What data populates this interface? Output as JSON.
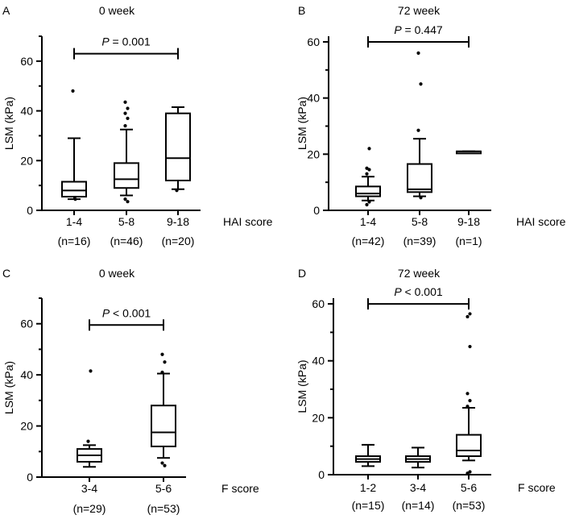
{
  "chart_data": [
    {
      "type": "box",
      "panel": "A",
      "title": "0 week",
      "ylabel": "LSM (kPa)",
      "xlabel": "HAI score",
      "ylim": [
        0,
        70
      ],
      "yticks": [
        0,
        20,
        40,
        60
      ],
      "categories": [
        {
          "label": "1-4",
          "n": "(n=16)",
          "whisker_low": 4.5,
          "q1": 5.5,
          "median": 8,
          "q3": 11.5,
          "whisker_high": 29,
          "outliers_low": [
            4.5
          ],
          "outliers_high": [
            48
          ]
        },
        {
          "label": "5-8",
          "n": "(n=46)",
          "whisker_low": 6,
          "q1": 9,
          "median": 12.5,
          "q3": 19,
          "whisker_high": 32.5,
          "outliers_low": [
            3.5,
            4.5
          ],
          "outliers_high": [
            34,
            37,
            39,
            41,
            43.5
          ]
        },
        {
          "label": "9-18",
          "n": "(n=20)",
          "whisker_low": 8.5,
          "q1": 12,
          "median": 21,
          "q3": 39,
          "whisker_high": 41.5,
          "outliers_low": [
            8
          ],
          "outliers_high": []
        }
      ],
      "comparison": {
        "from": 0,
        "to": 2,
        "y": 63,
        "p": "P",
        "value": "= 0.001"
      }
    },
    {
      "type": "box",
      "panel": "B",
      "title": "72 week",
      "ylabel": "LSM (kPa)",
      "xlabel": "HAI score",
      "ylim": [
        0,
        62
      ],
      "yticks": [
        0,
        20,
        40,
        60
      ],
      "categories": [
        {
          "label": "1-4",
          "n": "(n=42)",
          "whisker_low": 3.5,
          "q1": 5,
          "median": 6,
          "q3": 8.5,
          "whisker_high": 12,
          "outliers_low": [
            2,
            3
          ],
          "outliers_high": [
            13,
            14.5,
            15,
            22
          ]
        },
        {
          "label": "5-8",
          "n": "(n=39)",
          "whisker_low": 5,
          "q1": 6.5,
          "median": 7.5,
          "q3": 16.5,
          "whisker_high": 25.5,
          "outliers_low": [
            4.5
          ],
          "outliers_high": [
            28.5,
            45,
            56
          ]
        },
        {
          "label": "9-18",
          "n": "(n=1)",
          "whisker_low": 21,
          "q1": 21,
          "median": 21,
          "q3": 21,
          "whisker_high": 21,
          "outliers_low": [],
          "outliers_high": []
        }
      ],
      "comparison": {
        "from": 0,
        "to": 2,
        "y": 60,
        "p": "P",
        "value": "= 0.447"
      }
    },
    {
      "type": "box",
      "panel": "C",
      "title": "0 week",
      "ylabel": "LSM (kPa)",
      "xlabel": "F score",
      "ylim": [
        0,
        70
      ],
      "yticks": [
        0,
        20,
        40,
        60
      ],
      "categories": [
        {
          "label": "3-4",
          "n": "(n=29)",
          "whisker_low": 4,
          "q1": 6,
          "median": 8.5,
          "q3": 11,
          "whisker_high": 12.5,
          "outliers_low": [],
          "outliers_high": [
            14,
            41.5
          ]
        },
        {
          "label": "5-6",
          "n": "(n=53)",
          "whisker_low": 7.5,
          "q1": 12,
          "median": 17.5,
          "q3": 28,
          "whisker_high": 40.5,
          "outliers_low": [
            4.5,
            5.5
          ],
          "outliers_high": [
            41,
            45,
            48
          ]
        }
      ],
      "comparison": {
        "from": 0,
        "to": 1,
        "y": 59.5,
        "p": "P",
        "value": "< 0.001"
      }
    },
    {
      "type": "box",
      "panel": "D",
      "title": "72 week",
      "ylabel": "LSM (kPa)",
      "xlabel": "F score",
      "ylim": [
        0,
        62
      ],
      "yticks": [
        0,
        20,
        40,
        60
      ],
      "categories": [
        {
          "label": "1-2",
          "n": "(n=15)",
          "whisker_low": 3,
          "q1": 4.5,
          "median": 5.5,
          "q3": 6.5,
          "whisker_high": 10.5,
          "outliers_low": [],
          "outliers_high": []
        },
        {
          "label": "3-4",
          "n": "(n=14)",
          "whisker_low": 2.5,
          "q1": 4.5,
          "median": 5.5,
          "q3": 6.5,
          "whisker_high": 9.5,
          "outliers_low": [],
          "outliers_high": []
        },
        {
          "label": "5-6",
          "n": "(n=53)",
          "whisker_low": 5,
          "q1": 6.5,
          "median": 8.5,
          "q3": 14,
          "whisker_high": 23.5,
          "outliers_low": [
            0.5,
            1
          ],
          "outliers_high": [
            24,
            26,
            28.5,
            45,
            55.5,
            56.5
          ]
        }
      ],
      "comparison": {
        "from": 0,
        "to": 2,
        "y": 60,
        "p": "P",
        "value": "< 0.001"
      }
    }
  ]
}
